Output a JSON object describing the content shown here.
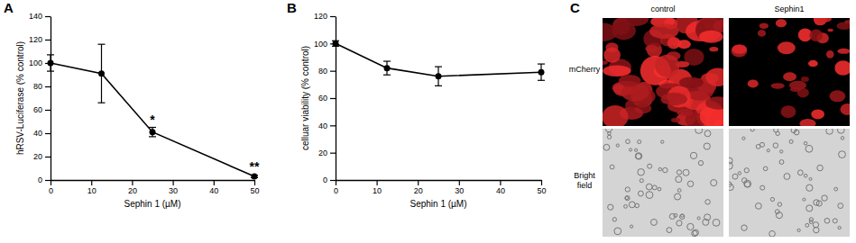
{
  "chart_data": [
    {
      "type": "line",
      "title": "A",
      "x": [
        0,
        12.5,
        25,
        50
      ],
      "values": [
        100,
        91,
        41,
        3
      ],
      "errors": [
        7,
        25,
        4,
        1
      ],
      "x_label": "Sephin 1 (µM)",
      "y_label": "hRSV-Luciferase (% control)",
      "xlim": [
        0,
        50
      ],
      "xticks": [
        0,
        10,
        20,
        30,
        40,
        50
      ],
      "ylim": [
        0,
        140
      ],
      "yticks": [
        0,
        20,
        40,
        60,
        80,
        100,
        120,
        140
      ],
      "color": "#000000",
      "marker": "circle",
      "annotations": [
        {
          "text": "*",
          "x": 25,
          "y": 48
        },
        {
          "text": "**",
          "x": 50,
          "y": 8
        }
      ]
    },
    {
      "type": "line",
      "title": "B",
      "x": [
        0,
        12.5,
        25,
        50
      ],
      "values": [
        100,
        82,
        76,
        79
      ],
      "errors": [
        2,
        5,
        7,
        6
      ],
      "x_label": "Sephin 1 (µM)",
      "y_label": "celluar viability (% control)",
      "xlim": [
        0,
        50
      ],
      "xticks": [
        0,
        10,
        20,
        30,
        40,
        50
      ],
      "ylim": [
        0,
        120
      ],
      "yticks": [
        0,
        20,
        40,
        60,
        80,
        100,
        120
      ],
      "color": "#000000",
      "marker": "circle"
    }
  ],
  "panel_c": {
    "title": "C",
    "columns": [
      "control",
      "Sephin1"
    ],
    "rows": [
      "mCherry",
      "Bright field"
    ]
  }
}
